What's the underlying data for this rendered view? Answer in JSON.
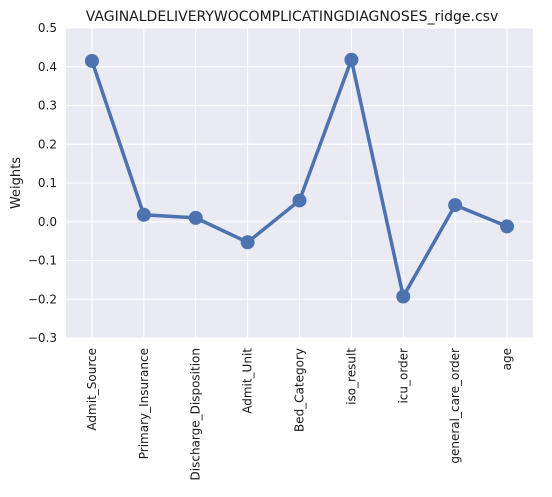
{
  "chart_data": {
    "type": "line",
    "title": "VAGINALDELIVERYWOCOMPLICATINGDIAGNOSES_ridge.csv",
    "xlabel": "",
    "ylabel": "Weights",
    "categories": [
      "Admit_Source",
      "Primary_Insurance",
      "Discharge_Disposition",
      "Admit_Unit",
      "Bed_Category",
      "iso_result",
      "icu_order",
      "general_care_order",
      "age"
    ],
    "series": [
      {
        "values": [
          0.415,
          0.018,
          0.01,
          -0.053,
          0.055,
          0.418,
          -0.193,
          0.043,
          -0.012
        ]
      }
    ],
    "ylim": [
      -0.3,
      0.5
    ],
    "yticks": [
      "−0.3",
      "−0.2",
      "−0.1",
      "0.0",
      "0.1",
      "0.2",
      "0.3",
      "0.4",
      "0.5"
    ],
    "grid": true,
    "colors": {
      "background": "#EAEAF2",
      "grid": "#FFFFFF",
      "series": "#4C72B0"
    }
  }
}
